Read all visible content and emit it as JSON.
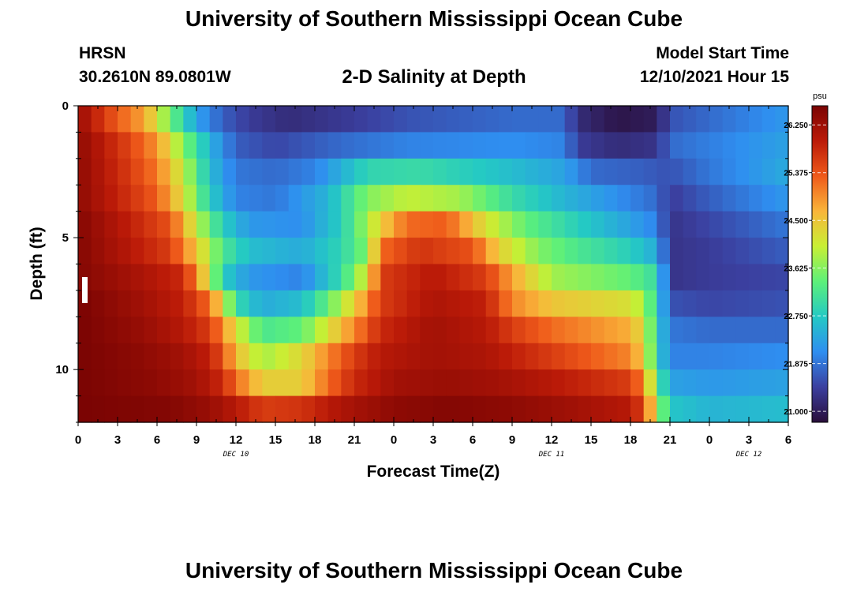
{
  "header": {
    "title": "University of Southern Mississippi Ocean Cube",
    "station": "HRSN",
    "coords": "30.2610N  89.0801W",
    "subtitle": "2-D Salinity at Depth",
    "model_start_label": "Model Start Time",
    "model_start_value": "12/10/2021 Hour 15",
    "footer_title": "University of Southern Mississippi Ocean Cube"
  },
  "colors": {
    "scale": [
      "#2a0e3a",
      "#3b3f9f",
      "#2f8ef0",
      "#24c9c4",
      "#5cf07a",
      "#c8ef34",
      "#f9b53a",
      "#ef5a1a",
      "#bb1a08",
      "#7a0403"
    ]
  },
  "chart_data": {
    "type": "heatmap",
    "title": "2-D Salinity at Depth",
    "xlabel": "Forecast Time(Z)",
    "ylabel": "Depth (ft)",
    "x_range_hours": [
      0,
      54
    ],
    "y_range_ft": [
      0,
      12
    ],
    "x_ticks": [
      {
        "hour": 0,
        "label": "0"
      },
      {
        "hour": 3,
        "label": "3"
      },
      {
        "hour": 6,
        "label": "6"
      },
      {
        "hour": 9,
        "label": "9"
      },
      {
        "hour": 12,
        "label": "12"
      },
      {
        "hour": 15,
        "label": "15"
      },
      {
        "hour": 18,
        "label": "18"
      },
      {
        "hour": 21,
        "label": "21"
      },
      {
        "hour": 24,
        "label": "0"
      },
      {
        "hour": 27,
        "label": "3"
      },
      {
        "hour": 30,
        "label": "6"
      },
      {
        "hour": 33,
        "label": "9"
      },
      {
        "hour": 36,
        "label": "12"
      },
      {
        "hour": 39,
        "label": "15"
      },
      {
        "hour": 42,
        "label": "18"
      },
      {
        "hour": 45,
        "label": "21"
      },
      {
        "hour": 48,
        "label": "0"
      },
      {
        "hour": 51,
        "label": "3"
      },
      {
        "hour": 54,
        "label": "6"
      }
    ],
    "date_labels": [
      {
        "hour": 12,
        "label": "DEC 10"
      },
      {
        "hour": 36,
        "label": "DEC 11"
      },
      {
        "hour": 51,
        "label": "DEC 12"
      }
    ],
    "y_ticks": [
      {
        "depth": 0,
        "label": "0"
      },
      {
        "depth": 5,
        "label": "5"
      },
      {
        "depth": 10,
        "label": "10"
      }
    ],
    "colorbar": {
      "unit": "psu",
      "min": 20.8,
      "max": 26.6,
      "ticks": [
        {
          "value": 26.25,
          "label": "26.250"
        },
        {
          "value": 25.375,
          "label": "25.375"
        },
        {
          "value": 24.5,
          "label": "24.500"
        },
        {
          "value": 23.625,
          "label": "23.625"
        },
        {
          "value": 22.75,
          "label": "22.750"
        },
        {
          "value": 21.875,
          "label": "21.875"
        },
        {
          "value": 21.0,
          "label": "21.000"
        }
      ]
    },
    "rows": 12,
    "cols": 54,
    "layers": [
      {
        "depth": 0.5,
        "keyframes": [
          [
            0,
            26.3
          ],
          [
            3,
            25.3
          ],
          [
            5,
            24.8
          ],
          [
            7,
            23.5
          ],
          [
            9,
            22.3
          ],
          [
            11,
            21.7
          ],
          [
            13,
            21.4
          ],
          [
            16,
            21.2
          ],
          [
            21,
            21.4
          ],
          [
            25,
            21.6
          ],
          [
            33,
            21.8
          ],
          [
            37,
            21.8
          ],
          [
            38,
            21.2
          ],
          [
            41,
            20.9
          ],
          [
            44,
            21.0
          ],
          [
            45,
            21.6
          ],
          [
            54,
            22.2
          ]
        ]
      },
      {
        "depth": 1.5,
        "keyframes": [
          [
            0,
            26.4
          ],
          [
            4,
            25.5
          ],
          [
            6,
            24.9
          ],
          [
            8,
            23.6
          ],
          [
            10,
            22.5
          ],
          [
            12,
            21.7
          ],
          [
            15,
            21.5
          ],
          [
            20,
            21.8
          ],
          [
            25,
            22.0
          ],
          [
            33,
            22.1
          ],
          [
            37,
            22.0
          ],
          [
            38,
            21.4
          ],
          [
            41,
            21.2
          ],
          [
            44,
            21.3
          ],
          [
            45,
            21.8
          ],
          [
            54,
            22.3
          ]
        ]
      },
      {
        "depth": 2.5,
        "keyframes": [
          [
            0,
            26.4
          ],
          [
            4,
            25.6
          ],
          [
            6,
            25.1
          ],
          [
            8,
            24.0
          ],
          [
            10,
            22.6
          ],
          [
            12,
            21.9
          ],
          [
            15,
            21.8
          ],
          [
            18,
            22.0
          ],
          [
            22,
            22.9
          ],
          [
            26,
            23.0
          ],
          [
            33,
            22.6
          ],
          [
            37,
            22.3
          ],
          [
            39,
            21.8
          ],
          [
            43,
            21.7
          ],
          [
            45,
            21.6
          ],
          [
            48,
            21.9
          ],
          [
            54,
            22.4
          ]
        ]
      },
      {
        "depth": 3.5,
        "keyframes": [
          [
            0,
            26.4
          ],
          [
            4,
            25.7
          ],
          [
            6,
            25.3
          ],
          [
            8,
            24.2
          ],
          [
            10,
            22.8
          ],
          [
            12,
            22.0
          ],
          [
            15,
            21.9
          ],
          [
            19,
            22.5
          ],
          [
            22,
            23.6
          ],
          [
            25,
            24.0
          ],
          [
            29,
            23.8
          ],
          [
            33,
            23.0
          ],
          [
            37,
            22.5
          ],
          [
            41,
            22.1
          ],
          [
            44,
            21.8
          ],
          [
            45,
            21.4
          ],
          [
            48,
            21.7
          ],
          [
            54,
            22.2
          ]
        ]
      },
      {
        "depth": 4.5,
        "keyframes": [
          [
            0,
            26.5
          ],
          [
            4,
            25.9
          ],
          [
            7,
            25.4
          ],
          [
            9,
            24.0
          ],
          [
            11,
            22.8
          ],
          [
            13,
            22.2
          ],
          [
            17,
            22.1
          ],
          [
            20,
            22.8
          ],
          [
            22,
            23.8
          ],
          [
            23,
            24.4
          ],
          [
            25,
            25.2
          ],
          [
            28,
            25.3
          ],
          [
            31,
            24.2
          ],
          [
            34,
            23.4
          ],
          [
            38,
            22.8
          ],
          [
            42,
            22.3
          ],
          [
            44,
            22.0
          ],
          [
            45,
            21.3
          ],
          [
            48,
            21.5
          ],
          [
            54,
            21.9
          ]
        ]
      },
      {
        "depth": 5.5,
        "keyframes": [
          [
            0,
            26.5
          ],
          [
            4,
            26.0
          ],
          [
            7,
            25.6
          ],
          [
            9,
            24.5
          ],
          [
            11,
            23.2
          ],
          [
            13,
            22.6
          ],
          [
            17,
            22.4
          ],
          [
            20,
            22.9
          ],
          [
            22,
            23.6
          ],
          [
            23,
            25.2
          ],
          [
            26,
            25.7
          ],
          [
            30,
            25.4
          ],
          [
            32,
            24.4
          ],
          [
            35,
            23.6
          ],
          [
            38,
            23.2
          ],
          [
            42,
            22.8
          ],
          [
            44,
            22.4
          ],
          [
            45,
            21.3
          ],
          [
            48,
            21.4
          ],
          [
            54,
            21.7
          ]
        ]
      },
      {
        "depth": 6.5,
        "keyframes": [
          [
            0,
            26.5
          ],
          [
            5,
            26.1
          ],
          [
            8,
            25.8
          ],
          [
            9,
            25.0
          ],
          [
            10,
            24.0
          ],
          [
            11,
            22.8
          ],
          [
            13,
            22.2
          ],
          [
            17,
            22.0
          ],
          [
            20,
            23.0
          ],
          [
            22,
            24.2
          ],
          [
            23,
            25.6
          ],
          [
            27,
            26.0
          ],
          [
            31,
            25.6
          ],
          [
            33,
            24.8
          ],
          [
            36,
            23.8
          ],
          [
            42,
            23.4
          ],
          [
            44,
            23.0
          ],
          [
            45,
            21.3
          ],
          [
            48,
            21.4
          ],
          [
            54,
            21.5
          ]
        ]
      },
      {
        "depth": 7.5,
        "keyframes": [
          [
            0,
            26.6
          ],
          [
            5,
            26.2
          ],
          [
            8,
            25.9
          ],
          [
            10,
            25.2
          ],
          [
            11,
            24.2
          ],
          [
            12,
            23.0
          ],
          [
            14,
            22.4
          ],
          [
            17,
            22.6
          ],
          [
            19,
            23.4
          ],
          [
            21,
            24.4
          ],
          [
            23,
            25.6
          ],
          [
            27,
            26.1
          ],
          [
            31,
            25.9
          ],
          [
            33,
            25.0
          ],
          [
            36,
            24.5
          ],
          [
            42,
            24.2
          ],
          [
            43,
            23.8
          ],
          [
            44,
            22.9
          ],
          [
            45,
            21.6
          ],
          [
            48,
            21.5
          ],
          [
            54,
            21.6
          ]
        ]
      },
      {
        "depth": 8.5,
        "keyframes": [
          [
            0,
            26.6
          ],
          [
            5,
            26.3
          ],
          [
            8,
            26.0
          ],
          [
            10,
            25.6
          ],
          [
            11,
            25.0
          ],
          [
            12,
            24.2
          ],
          [
            14,
            23.2
          ],
          [
            17,
            23.4
          ],
          [
            19,
            24.2
          ],
          [
            21,
            25.0
          ],
          [
            23,
            25.8
          ],
          [
            27,
            26.2
          ],
          [
            31,
            26.0
          ],
          [
            33,
            25.6
          ],
          [
            36,
            25.2
          ],
          [
            42,
            24.7
          ],
          [
            43,
            24.2
          ],
          [
            44,
            22.9
          ],
          [
            45,
            21.9
          ],
          [
            48,
            21.8
          ],
          [
            54,
            21.8
          ]
        ]
      },
      {
        "depth": 9.5,
        "keyframes": [
          [
            0,
            26.6
          ],
          [
            5,
            26.4
          ],
          [
            8,
            26.2
          ],
          [
            10,
            25.9
          ],
          [
            11,
            25.4
          ],
          [
            12,
            24.6
          ],
          [
            14,
            23.8
          ],
          [
            17,
            24.3
          ],
          [
            19,
            25.0
          ],
          [
            21,
            25.6
          ],
          [
            23,
            26.0
          ],
          [
            27,
            26.2
          ],
          [
            31,
            26.1
          ],
          [
            34,
            25.8
          ],
          [
            38,
            25.4
          ],
          [
            42,
            25.0
          ],
          [
            43,
            24.4
          ],
          [
            44,
            22.9
          ],
          [
            45,
            22.0
          ],
          [
            48,
            22.0
          ],
          [
            54,
            22.1
          ]
        ]
      },
      {
        "depth": 10.5,
        "keyframes": [
          [
            0,
            26.6
          ],
          [
            6,
            26.4
          ],
          [
            9,
            26.2
          ],
          [
            11,
            25.8
          ],
          [
            12,
            25.2
          ],
          [
            14,
            24.4
          ],
          [
            17,
            24.4
          ],
          [
            19,
            25.2
          ],
          [
            21,
            25.8
          ],
          [
            24,
            26.2
          ],
          [
            28,
            26.3
          ],
          [
            32,
            26.2
          ],
          [
            36,
            26.0
          ],
          [
            42,
            25.6
          ],
          [
            43,
            25.0
          ],
          [
            44,
            23.4
          ],
          [
            45,
            22.3
          ],
          [
            48,
            22.2
          ],
          [
            54,
            22.3
          ]
        ]
      },
      {
        "depth": 11.5,
        "keyframes": [
          [
            0,
            26.6
          ],
          [
            7,
            26.5
          ],
          [
            10,
            26.3
          ],
          [
            12,
            26.0
          ],
          [
            14,
            25.6
          ],
          [
            17,
            25.7
          ],
          [
            20,
            26.1
          ],
          [
            24,
            26.4
          ],
          [
            28,
            26.5
          ],
          [
            33,
            26.4
          ],
          [
            38,
            26.2
          ],
          [
            42,
            26.0
          ],
          [
            43,
            25.5
          ],
          [
            44,
            24.0
          ],
          [
            45,
            22.7
          ],
          [
            48,
            22.5
          ],
          [
            54,
            22.6
          ]
        ]
      }
    ]
  }
}
